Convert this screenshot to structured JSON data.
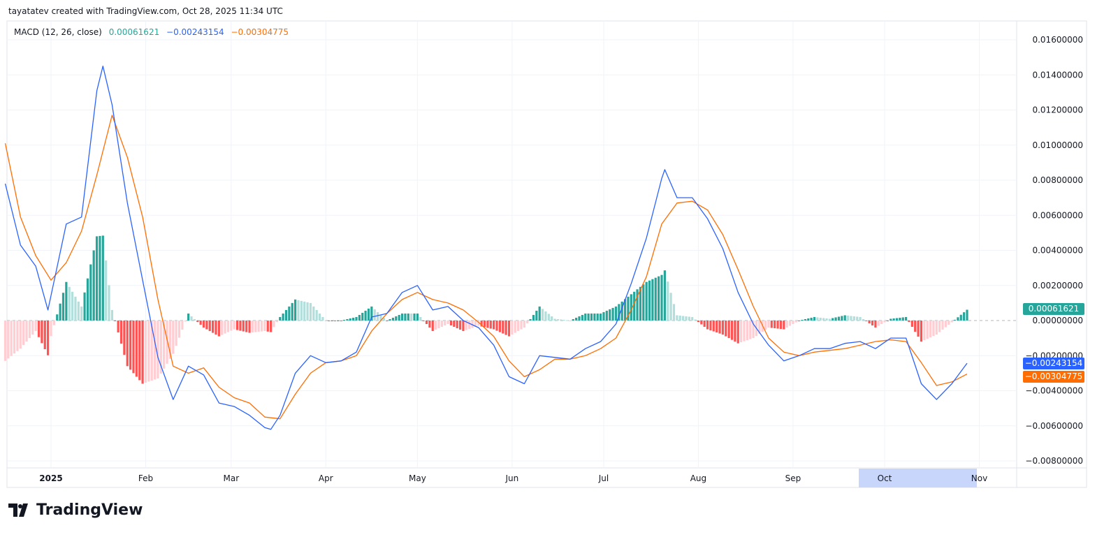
{
  "header": {
    "credit": "tayatatev created with TradingView.com, Oct 28, 2025 11:34 UTC"
  },
  "legend": {
    "indicator": "MACD (12, 26, close)",
    "histogram_value": "0.00061621",
    "macd_value": "−0.00243154",
    "signal_value": "−0.00304775"
  },
  "tags": {
    "histogram": "0.00061621",
    "macd": "−0.00243154",
    "signal": "−0.00304775"
  },
  "brand": {
    "name": "TradingView",
    "icon": "tradingview-logo-icon"
  },
  "colors": {
    "macd": "#2962ff",
    "signal": "#ff6d00",
    "hist_up_strong": "#26a69a",
    "hist_up_weak": "#b2dfdb",
    "hist_down_strong": "#ff5252",
    "hist_down_weak": "#ffcdd2",
    "highlight": "#c9d6fb"
  },
  "chart_data": {
    "type": "line",
    "title": "",
    "ylim": [
      -0.008,
      0.017
    ],
    "y_ticks": [
      "0.01600000",
      "0.01400000",
      "0.01200000",
      "0.01000000",
      "0.00800000",
      "0.00600000",
      "0.00400000",
      "0.00200000",
      "0.00000000",
      "−0.00200000",
      "−0.00400000",
      "−0.00600000",
      "−0.00800000"
    ],
    "y_tick_values": [
      0.016,
      0.014,
      0.012,
      0.01,
      0.008,
      0.006,
      0.004,
      0.002,
      0,
      -0.002,
      -0.004,
      -0.006,
      -0.008
    ],
    "x_ticks": [
      {
        "label": "2025",
        "date": "2025-01-01",
        "bold": true
      },
      {
        "label": "Feb",
        "date": "2025-02-01"
      },
      {
        "label": "Mar",
        "date": "2025-03-01"
      },
      {
        "label": "Apr",
        "date": "2025-04-01"
      },
      {
        "label": "May",
        "date": "2025-05-01"
      },
      {
        "label": "Jun",
        "date": "2025-06-01"
      },
      {
        "label": "Jul",
        "date": "2025-07-01"
      },
      {
        "label": "Aug",
        "date": "2025-08-01"
      },
      {
        "label": "Sep",
        "date": "2025-09-01"
      },
      {
        "label": "Oct",
        "date": "2025-10-01",
        "highlighted": true
      },
      {
        "label": "Nov",
        "date": "2025-11-01"
      }
    ],
    "grid": true,
    "histogram": "macd minus signal",
    "series": [
      {
        "name": "MACD",
        "color": "#2962ff",
        "points": [
          [
            "2024-12-17",
            0.0078
          ],
          [
            "2024-12-22",
            0.0043
          ],
          [
            "2024-12-27",
            0.0031
          ],
          [
            "2024-12-31",
            0.0006
          ],
          [
            "2025-01-06",
            0.0055
          ],
          [
            "2025-01-11",
            0.0059
          ],
          [
            "2025-01-16",
            0.0131
          ],
          [
            "2025-01-18",
            0.0145
          ],
          [
            "2025-01-21",
            0.0123
          ],
          [
            "2025-01-26",
            0.0067
          ],
          [
            "2025-01-31",
            0.0023
          ],
          [
            "2025-02-05",
            -0.0021
          ],
          [
            "2025-02-10",
            -0.0045
          ],
          [
            "2025-02-15",
            -0.0026
          ],
          [
            "2025-02-20",
            -0.0031
          ],
          [
            "2025-02-25",
            -0.0047
          ],
          [
            "2025-03-02",
            -0.0049
          ],
          [
            "2025-03-07",
            -0.0054
          ],
          [
            "2025-03-12",
            -0.0061
          ],
          [
            "2025-03-14",
            -0.0062
          ],
          [
            "2025-03-17",
            -0.0054
          ],
          [
            "2025-03-22",
            -0.003
          ],
          [
            "2025-03-27",
            -0.002
          ],
          [
            "2025-04-01",
            -0.0024
          ],
          [
            "2025-04-06",
            -0.0023
          ],
          [
            "2025-04-11",
            -0.0018
          ],
          [
            "2025-04-16",
            0.0002
          ],
          [
            "2025-04-21",
            0.0004
          ],
          [
            "2025-04-26",
            0.0016
          ],
          [
            "2025-05-01",
            0.002
          ],
          [
            "2025-05-06",
            0.0006
          ],
          [
            "2025-05-11",
            0.0008
          ],
          [
            "2025-05-16",
            0.0
          ],
          [
            "2025-05-21",
            -0.0004
          ],
          [
            "2025-05-26",
            -0.0014
          ],
          [
            "2025-05-31",
            -0.0032
          ],
          [
            "2025-06-05",
            -0.0036
          ],
          [
            "2025-06-10",
            -0.002
          ],
          [
            "2025-06-15",
            -0.0021
          ],
          [
            "2025-06-20",
            -0.0022
          ],
          [
            "2025-06-25",
            -0.0016
          ],
          [
            "2025-06-30",
            -0.0012
          ],
          [
            "2025-07-05",
            -0.0002
          ],
          [
            "2025-07-10",
            0.0021
          ],
          [
            "2025-07-15",
            0.0047
          ],
          [
            "2025-07-20",
            0.0081
          ],
          [
            "2025-07-21",
            0.0086
          ],
          [
            "2025-07-25",
            0.007
          ],
          [
            "2025-07-30",
            0.007
          ],
          [
            "2025-08-04",
            0.0058
          ],
          [
            "2025-08-09",
            0.0041
          ],
          [
            "2025-08-14",
            0.0016
          ],
          [
            "2025-08-19",
            -0.0002
          ],
          [
            "2025-08-24",
            -0.0014
          ],
          [
            "2025-08-29",
            -0.0023
          ],
          [
            "2025-09-03",
            -0.002
          ],
          [
            "2025-09-08",
            -0.0016
          ],
          [
            "2025-09-13",
            -0.0016
          ],
          [
            "2025-09-18",
            -0.0013
          ],
          [
            "2025-09-23",
            -0.0012
          ],
          [
            "2025-09-28",
            -0.0016
          ],
          [
            "2025-10-03",
            -0.001
          ],
          [
            "2025-10-08",
            -0.001
          ],
          [
            "2025-10-13",
            -0.0036
          ],
          [
            "2025-10-18",
            -0.0045
          ],
          [
            "2025-10-23",
            -0.0036
          ],
          [
            "2025-10-28",
            -0.00243154
          ]
        ]
      },
      {
        "name": "Signal",
        "color": "#ff6d00",
        "points": [
          [
            "2024-12-17",
            0.0101
          ],
          [
            "2024-12-22",
            0.0059
          ],
          [
            "2024-12-27",
            0.0037
          ],
          [
            "2025-01-01",
            0.0023
          ],
          [
            "2025-01-06",
            0.0033
          ],
          [
            "2025-01-11",
            0.0051
          ],
          [
            "2025-01-16",
            0.0083
          ],
          [
            "2025-01-21",
            0.0117
          ],
          [
            "2025-01-26",
            0.0093
          ],
          [
            "2025-01-31",
            0.0059
          ],
          [
            "2025-02-05",
            0.0012
          ],
          [
            "2025-02-10",
            -0.0026
          ],
          [
            "2025-02-15",
            -0.003
          ],
          [
            "2025-02-20",
            -0.0027
          ],
          [
            "2025-02-25",
            -0.0038
          ],
          [
            "2025-03-02",
            -0.0044
          ],
          [
            "2025-03-07",
            -0.0047
          ],
          [
            "2025-03-12",
            -0.0055
          ],
          [
            "2025-03-17",
            -0.0056
          ],
          [
            "2025-03-22",
            -0.0042
          ],
          [
            "2025-03-27",
            -0.003
          ],
          [
            "2025-04-01",
            -0.0024
          ],
          [
            "2025-04-06",
            -0.0023
          ],
          [
            "2025-04-11",
            -0.002
          ],
          [
            "2025-04-16",
            -0.0006
          ],
          [
            "2025-04-21",
            0.0004
          ],
          [
            "2025-04-26",
            0.0012
          ],
          [
            "2025-05-01",
            0.0016
          ],
          [
            "2025-05-06",
            0.0012
          ],
          [
            "2025-05-11",
            0.001
          ],
          [
            "2025-05-16",
            0.0006
          ],
          [
            "2025-05-21",
            -0.0001
          ],
          [
            "2025-05-26",
            -0.0009
          ],
          [
            "2025-05-31",
            -0.0023
          ],
          [
            "2025-06-05",
            -0.0032
          ],
          [
            "2025-06-10",
            -0.0028
          ],
          [
            "2025-06-15",
            -0.0022
          ],
          [
            "2025-06-20",
            -0.0022
          ],
          [
            "2025-06-25",
            -0.002
          ],
          [
            "2025-06-30",
            -0.0016
          ],
          [
            "2025-07-05",
            -0.001
          ],
          [
            "2025-07-10",
            0.0006
          ],
          [
            "2025-07-15",
            0.0025
          ],
          [
            "2025-07-20",
            0.0055
          ],
          [
            "2025-07-25",
            0.0067
          ],
          [
            "2025-07-30",
            0.0068
          ],
          [
            "2025-08-04",
            0.0063
          ],
          [
            "2025-08-09",
            0.0049
          ],
          [
            "2025-08-14",
            0.0029
          ],
          [
            "2025-08-19",
            0.0008
          ],
          [
            "2025-08-24",
            -0.001
          ],
          [
            "2025-08-29",
            -0.0018
          ],
          [
            "2025-09-03",
            -0.002
          ],
          [
            "2025-09-08",
            -0.0018
          ],
          [
            "2025-09-13",
            -0.0017
          ],
          [
            "2025-09-18",
            -0.0016
          ],
          [
            "2025-09-23",
            -0.0014
          ],
          [
            "2025-09-28",
            -0.0012
          ],
          [
            "2025-10-03",
            -0.0011
          ],
          [
            "2025-10-08",
            -0.0012
          ],
          [
            "2025-10-13",
            -0.0024
          ],
          [
            "2025-10-18",
            -0.0037
          ],
          [
            "2025-10-23",
            -0.0035
          ],
          [
            "2025-10-28",
            -0.00304775
          ]
        ]
      }
    ]
  }
}
